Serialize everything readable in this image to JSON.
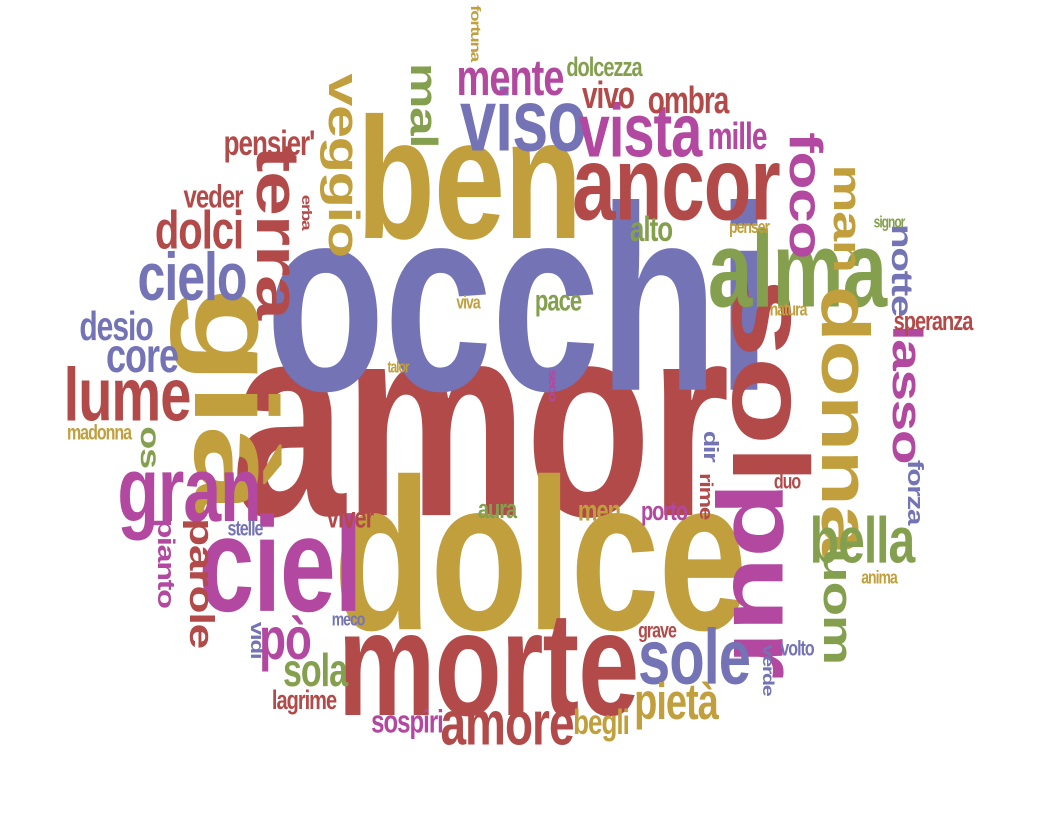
{
  "palette": {
    "red": "#b34a4a",
    "gold": "#c19f3c",
    "blue": "#7373b6",
    "magenta": "#b2489f",
    "green": "#84a04f"
  },
  "words": [
    {
      "text": "amor",
      "color": "red"
    },
    {
      "text": "occhi",
      "color": "blue"
    },
    {
      "text": "dolce",
      "color": "gold"
    },
    {
      "text": "ben",
      "color": "gold"
    },
    {
      "text": "morte",
      "color": "red"
    },
    {
      "text": "ancor",
      "color": "red"
    },
    {
      "text": "pur",
      "color": "magenta"
    },
    {
      "text": "sol",
      "color": "red"
    },
    {
      "text": "ciel",
      "color": "magenta"
    },
    {
      "text": "alma",
      "color": "green"
    },
    {
      "text": "viso",
      "color": "blue"
    },
    {
      "text": "vista",
      "color": "magenta"
    },
    {
      "text": "terra",
      "color": "red"
    },
    {
      "text": "donna",
      "color": "gold"
    },
    {
      "text": "già",
      "color": "gold"
    },
    {
      "text": "gran",
      "color": "magenta"
    },
    {
      "text": "sole",
      "color": "blue"
    },
    {
      "text": "lume",
      "color": "red"
    },
    {
      "text": "cielo",
      "color": "blue"
    },
    {
      "text": "amore",
      "color": "red"
    },
    {
      "text": "bella",
      "color": "green"
    },
    {
      "text": "foco",
      "color": "magenta"
    },
    {
      "text": "veggio",
      "color": "gold"
    },
    {
      "text": "mente",
      "color": "magenta"
    },
    {
      "text": "dolci",
      "color": "red"
    },
    {
      "text": "lasso",
      "color": "magenta"
    },
    {
      "text": "uom",
      "color": "green"
    },
    {
      "text": "man",
      "color": "gold"
    },
    {
      "text": "mal",
      "color": "green"
    },
    {
      "text": "core",
      "color": "blue"
    },
    {
      "text": "pietà",
      "color": "gold"
    },
    {
      "text": "ombra",
      "color": "red"
    },
    {
      "text": "vivo",
      "color": "red"
    },
    {
      "text": "sola",
      "color": "green"
    },
    {
      "text": "notte",
      "color": "blue"
    },
    {
      "text": "parole",
      "color": "red"
    },
    {
      "text": "desio",
      "color": "blue"
    },
    {
      "text": "mille",
      "color": "magenta"
    },
    {
      "text": "pensier'",
      "color": "red"
    },
    {
      "text": "sospiri",
      "color": "magenta"
    },
    {
      "text": "begli",
      "color": "gold"
    },
    {
      "text": "veder",
      "color": "red"
    },
    {
      "text": "alto",
      "color": "green"
    },
    {
      "text": "pace",
      "color": "green"
    },
    {
      "text": "dolcezza",
      "color": "green"
    },
    {
      "text": "speranza",
      "color": "red"
    },
    {
      "text": "forza",
      "color": "blue"
    },
    {
      "text": "pianto",
      "color": "magenta"
    },
    {
      "text": "viver",
      "color": "red"
    },
    {
      "text": "aura",
      "color": "green"
    },
    {
      "text": "men",
      "color": "gold"
    },
    {
      "text": "porto",
      "color": "magenta"
    },
    {
      "text": "lagrime",
      "color": "red"
    },
    {
      "text": "madonna",
      "color": "gold"
    },
    {
      "text": "dir",
      "color": "blue"
    },
    {
      "text": "rime",
      "color": "red"
    },
    {
      "text": "duo",
      "color": "red"
    },
    {
      "text": "grave",
      "color": "red"
    },
    {
      "text": "volto",
      "color": "blue"
    },
    {
      "text": "verde",
      "color": "blue"
    },
    {
      "text": "vidi",
      "color": "blue"
    },
    {
      "text": "meco",
      "color": "blue"
    },
    {
      "text": "stelle",
      "color": "blue"
    },
    {
      "text": "viva",
      "color": "gold"
    },
    {
      "text": "natura",
      "color": "gold"
    },
    {
      "text": "penser",
      "color": "gold"
    },
    {
      "text": "signor",
      "color": "green"
    },
    {
      "text": "anima",
      "color": "gold"
    },
    {
      "text": "talor",
      "color": "gold"
    },
    {
      "text": "seco",
      "color": "magenta"
    },
    {
      "text": "erba",
      "color": "red"
    },
    {
      "text": "fortuna",
      "color": "gold"
    },
    {
      "text": "os",
      "color": "green"
    },
    {
      "text": "pò",
      "color": "magenta"
    }
  ]
}
